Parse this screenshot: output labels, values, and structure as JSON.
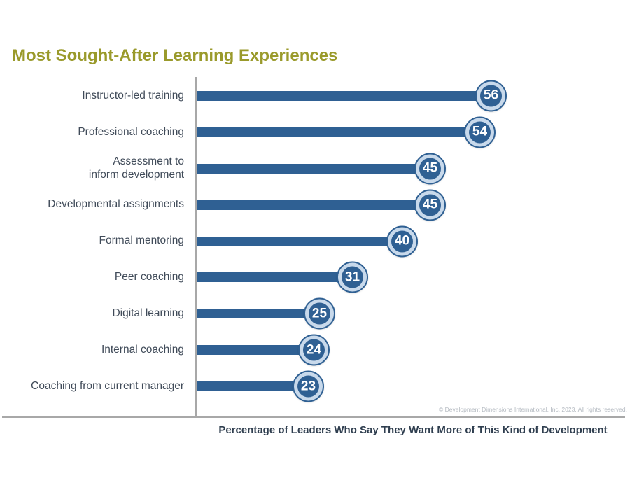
{
  "title": "Most Sought-After Learning Experiences",
  "footer": {
    "xlabel": "Percentage of Leaders Who Say They Want More of This Kind of Development",
    "copyright": "© Development Dimensions International, Inc. 2023. All rights reserved."
  },
  "colors": {
    "title": "#9a9a2b",
    "bar": "#2f6093",
    "ring": "#c8d9eb",
    "label": "#404b59",
    "xlabel": "#2f3e4f",
    "axis": "#a8a8a8",
    "copyright": "#b4bac1"
  },
  "chart_data": {
    "type": "bar",
    "orientation": "horizontal",
    "title": "Most Sought-After Learning Experiences",
    "xlabel": "Percentage of Leaders Who Say They Want More of This Kind of Development",
    "categories": [
      "Instructor-led training",
      "Professional coaching",
      "Assessment to\ninform development",
      "Developmental assignments",
      "Formal mentoring",
      "Peer coaching",
      "Digital learning",
      "Internal coaching",
      "Coaching from current manager"
    ],
    "values": [
      56,
      54,
      45,
      45,
      40,
      31,
      25,
      24,
      23
    ],
    "xlim": [
      0,
      60
    ],
    "grid": false,
    "legend": false,
    "data_label_style": "circled badge at bar end"
  }
}
